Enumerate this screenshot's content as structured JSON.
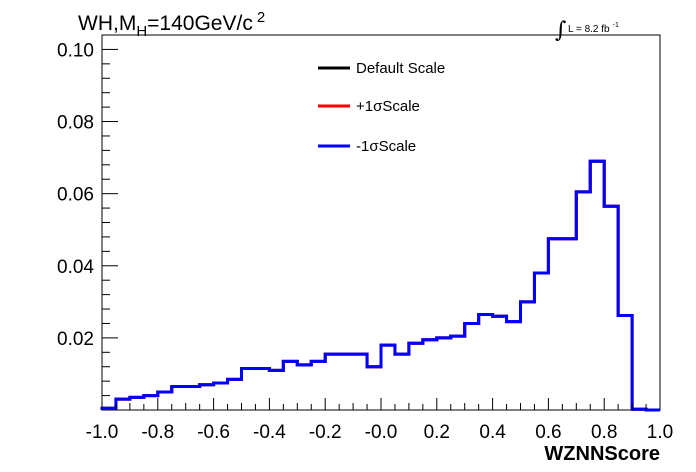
{
  "chart_data": {
    "type": "line",
    "title": {
      "main": "WH,M",
      "sub": "H",
      "rest": "=140GeV/c",
      "sup": "2"
    },
    "lumi": {
      "symbol": "∫",
      "text": "L = 8.2 fb",
      "sup": "-1"
    },
    "xlabel": "WZNNScore",
    "ylabel": "",
    "xlim": [
      -1.0,
      1.0
    ],
    "ylim": [
      0.0,
      0.104
    ],
    "x_ticks": [
      "-1.0",
      "-0.8",
      "-0.6",
      "-0.4",
      "-0.2",
      "-0.0",
      "0.2",
      "0.4",
      "0.6",
      "0.8",
      "1.0"
    ],
    "y_ticks": [
      "0.02",
      "0.04",
      "0.06",
      "0.08",
      "0.10"
    ],
    "bin_edges": [
      -1.0,
      -0.95,
      -0.9,
      -0.85,
      -0.8,
      -0.75,
      -0.7,
      -0.65,
      -0.6,
      -0.55,
      -0.5,
      -0.45,
      -0.4,
      -0.35,
      -0.3,
      -0.25,
      -0.2,
      -0.15,
      -0.1,
      -0.05,
      0.0,
      0.05,
      0.1,
      0.15,
      0.2,
      0.25,
      0.3,
      0.35,
      0.4,
      0.45,
      0.5,
      0.55,
      0.6,
      0.65,
      0.7,
      0.75,
      0.8,
      0.85,
      0.9,
      0.95,
      1.0
    ],
    "series": [
      {
        "name": "Default Scale",
        "color": "#000000",
        "values": [
          0.0005,
          0.003,
          0.0035,
          0.004,
          0.005,
          0.0065,
          0.0065,
          0.007,
          0.0075,
          0.0085,
          0.0115,
          0.0115,
          0.011,
          0.0135,
          0.0125,
          0.0135,
          0.0155,
          0.0155,
          0.0155,
          0.012,
          0.018,
          0.0155,
          0.0185,
          0.0195,
          0.02,
          0.0205,
          0.024,
          0.0265,
          0.026,
          0.0245,
          0.03,
          0.038,
          0.0475,
          0.0475,
          0.0605,
          0.069,
          0.0565,
          0.0262,
          0.0002,
          0.0
        ]
      },
      {
        "name": "+1σScale",
        "color": "#ff0000",
        "values": [
          0.0005,
          0.003,
          0.0035,
          0.004,
          0.005,
          0.0065,
          0.0065,
          0.007,
          0.0075,
          0.0085,
          0.0115,
          0.0115,
          0.011,
          0.0135,
          0.0125,
          0.0135,
          0.0155,
          0.0155,
          0.0155,
          0.012,
          0.018,
          0.0155,
          0.0185,
          0.0195,
          0.02,
          0.0205,
          0.024,
          0.0265,
          0.026,
          0.0245,
          0.03,
          0.038,
          0.0475,
          0.0475,
          0.0605,
          0.069,
          0.0565,
          0.0262,
          0.0002,
          0.0
        ]
      },
      {
        "name": "-1σScale",
        "color": "#0000ff",
        "values": [
          0.0005,
          0.003,
          0.0035,
          0.004,
          0.005,
          0.0065,
          0.0065,
          0.007,
          0.0075,
          0.0085,
          0.0115,
          0.0115,
          0.011,
          0.0135,
          0.0125,
          0.0135,
          0.0155,
          0.0155,
          0.0155,
          0.012,
          0.018,
          0.0155,
          0.0185,
          0.0195,
          0.02,
          0.0205,
          0.024,
          0.0265,
          0.026,
          0.0245,
          0.03,
          0.038,
          0.0475,
          0.0475,
          0.0605,
          0.069,
          0.0565,
          0.0262,
          0.0002,
          0.0
        ]
      }
    ],
    "legend_position": "top-center",
    "grid": false
  }
}
